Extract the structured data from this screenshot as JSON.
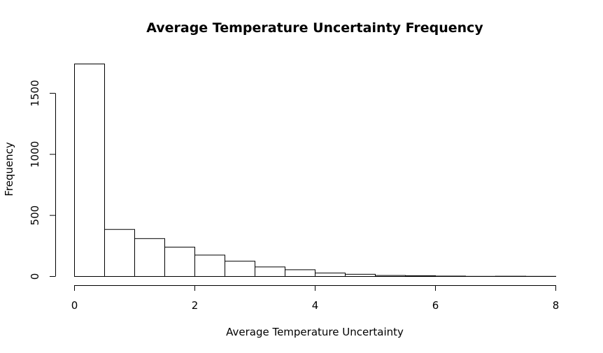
{
  "chart_data": {
    "type": "bar",
    "title": "Average Temperature Uncertainty Frequency",
    "xlabel": "Average Temperature Uncertainty",
    "ylabel": "Frequency",
    "bin_width": 0.5,
    "bins": [
      {
        "start": 0.0,
        "end": 0.5,
        "count": 1740
      },
      {
        "start": 0.5,
        "end": 1.0,
        "count": 385
      },
      {
        "start": 1.0,
        "end": 1.5,
        "count": 310
      },
      {
        "start": 1.5,
        "end": 2.0,
        "count": 240
      },
      {
        "start": 2.0,
        "end": 2.5,
        "count": 175
      },
      {
        "start": 2.5,
        "end": 3.0,
        "count": 125
      },
      {
        "start": 3.0,
        "end": 3.5,
        "count": 78
      },
      {
        "start": 3.5,
        "end": 4.0,
        "count": 55
      },
      {
        "start": 4.0,
        "end": 4.5,
        "count": 28
      },
      {
        "start": 4.5,
        "end": 5.0,
        "count": 18
      },
      {
        "start": 5.0,
        "end": 5.5,
        "count": 8
      },
      {
        "start": 5.5,
        "end": 6.0,
        "count": 6
      },
      {
        "start": 6.0,
        "end": 6.5,
        "count": 3
      },
      {
        "start": 6.5,
        "end": 7.0,
        "count": 1
      },
      {
        "start": 7.0,
        "end": 7.5,
        "count": 2
      },
      {
        "start": 7.5,
        "end": 8.0,
        "count": 1
      }
    ],
    "xlim": [
      0,
      8
    ],
    "ylim": [
      0,
      1740
    ],
    "x_ticks": [
      0,
      2,
      4,
      6,
      8
    ],
    "x_tick_labels": [
      "0",
      "2",
      "4",
      "6",
      "8"
    ],
    "y_ticks": [
      0,
      500,
      1000,
      1500
    ],
    "y_tick_labels": [
      "0",
      "500",
      "1000",
      "1500"
    ],
    "grid": false,
    "colors": {
      "bar_fill": "#ffffff",
      "bar_stroke": "#000000"
    }
  }
}
